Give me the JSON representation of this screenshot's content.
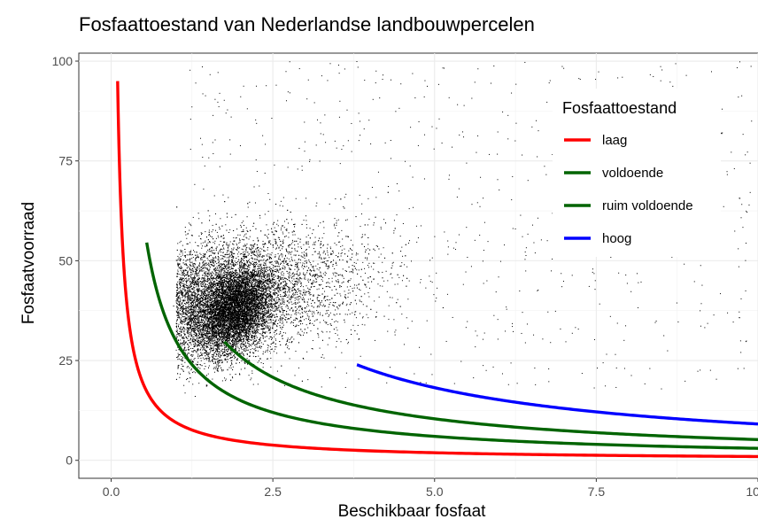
{
  "chart_data": {
    "type": "scatter",
    "title": "Fosfaattoestand van Nederlandse landbouwpercelen",
    "xlabel": "Beschikbaar fosfaat",
    "ylabel": "Fosfaatvoorraad",
    "xlim": [
      -0.5,
      10
    ],
    "ylim": [
      -4.5,
      102
    ],
    "xticks": [
      0,
      2.5,
      5,
      7.5,
      10
    ],
    "xtick_labels": [
      "0.0",
      "2.5",
      "5.0",
      "7.5",
      "10.0"
    ],
    "yticks": [
      0,
      25,
      50,
      75,
      100
    ],
    "ytick_labels": [
      "0",
      "25",
      "50",
      "75",
      "100"
    ],
    "grid": true,
    "legend": {
      "title": "Fosfaattoestand",
      "placement": "top-right",
      "entries": [
        {
          "label": "laag",
          "color": "#ff0000"
        },
        {
          "label": "voldoende",
          "color": "#006400"
        },
        {
          "label": "ruim voldoende",
          "color": "#006400"
        },
        {
          "label": "hoog",
          "color": "#0000ff"
        }
      ]
    },
    "scatter": {
      "color": "#000000",
      "center": [
        1.9,
        38
      ],
      "note_shape": "dense cloud of points"
    },
    "series": [
      {
        "name": "laag",
        "color": "#ff0000",
        "k": 9.5,
        "x_start": 0.1,
        "x_end": 10
      },
      {
        "name": "voldoende",
        "color": "#006400",
        "k": 30,
        "x_start": 0.55,
        "x_end": 10
      },
      {
        "name": "ruim voldoende",
        "color": "#006400",
        "k": 52,
        "x_start": 1.75,
        "x_end": 10
      },
      {
        "name": "hoog",
        "color": "#0000ff",
        "k": 91,
        "x_start": 3.8,
        "x_end": 10
      }
    ]
  }
}
